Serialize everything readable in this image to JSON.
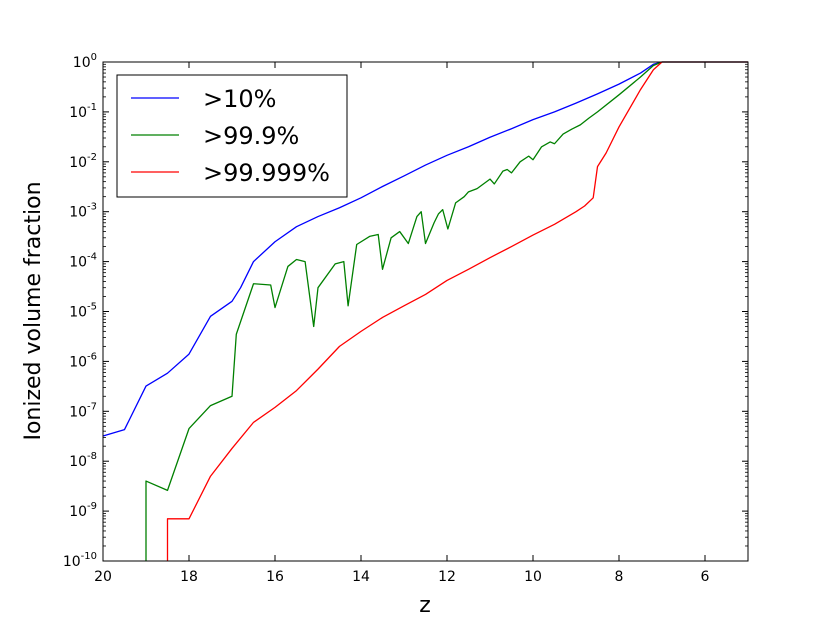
{
  "chart_data": {
    "type": "line",
    "xlabel": "z",
    "ylabel": "Ionized volume fraction",
    "xlim": [
      20,
      5
    ],
    "ylim": [
      1e-10,
      1
    ],
    "yscale": "log",
    "x_ticks": [
      20,
      18,
      16,
      14,
      12,
      10,
      8,
      6
    ],
    "x_tick_labels": [
      "20",
      "18",
      "16",
      "14",
      "12",
      "10",
      "8",
      "6"
    ],
    "y_ticks": [
      {
        "value": 1.0,
        "base": "10",
        "exp": "0"
      },
      {
        "value": 0.1,
        "base": "10",
        "exp": "-1"
      },
      {
        "value": 0.01,
        "base": "10",
        "exp": "-2"
      },
      {
        "value": 0.001,
        "base": "10",
        "exp": "-3"
      },
      {
        "value": 0.0001,
        "base": "10",
        "exp": "-4"
      },
      {
        "value": 1e-05,
        "base": "10",
        "exp": "-5"
      },
      {
        "value": 1e-06,
        "base": "10",
        "exp": "-6"
      },
      {
        "value": 1e-07,
        "base": "10",
        "exp": "-7"
      },
      {
        "value": 1e-08,
        "base": "10",
        "exp": "-8"
      },
      {
        "value": 1e-09,
        "base": "10",
        "exp": "-9"
      },
      {
        "value": 1e-10,
        "base": "10",
        "exp": "-10"
      }
    ],
    "grid": false,
    "legend": {
      "position": "top-left"
    },
    "series": [
      {
        "name": ">10%",
        "color": "#0000ff",
        "points": [
          [
            20.0,
            3.2e-08
          ],
          [
            19.5,
            4.3e-08
          ],
          [
            19.0,
            3.2e-07
          ],
          [
            18.5,
            5.8e-07
          ],
          [
            18.0,
            1.4e-06
          ],
          [
            17.5,
            8e-06
          ],
          [
            17.0,
            1.6e-05
          ],
          [
            16.8,
            3e-05
          ],
          [
            16.5,
            0.0001
          ],
          [
            16.0,
            0.00025
          ],
          [
            15.5,
            0.0005
          ],
          [
            15.0,
            0.0008
          ],
          [
            14.5,
            0.0012
          ],
          [
            14.0,
            0.0019
          ],
          [
            13.5,
            0.0032
          ],
          [
            13.0,
            0.0052
          ],
          [
            12.5,
            0.0086
          ],
          [
            12.0,
            0.0135
          ],
          [
            11.5,
            0.02
          ],
          [
            11.0,
            0.031
          ],
          [
            10.5,
            0.046
          ],
          [
            10.0,
            0.07
          ],
          [
            9.5,
            0.1
          ],
          [
            9.0,
            0.15
          ],
          [
            8.5,
            0.23
          ],
          [
            8.0,
            0.36
          ],
          [
            7.5,
            0.6
          ],
          [
            7.2,
            0.9
          ],
          [
            7.0,
            1.0
          ],
          [
            5.0,
            1.0
          ]
        ]
      },
      {
        "name": ">99.9%",
        "color": "#008000",
        "points": [
          [
            19.0,
            1e-10
          ],
          [
            19.0,
            4e-09
          ],
          [
            18.5,
            2.6e-09
          ],
          [
            18.0,
            4.5e-08
          ],
          [
            17.5,
            1.3e-07
          ],
          [
            17.0,
            2e-07
          ],
          [
            16.9,
            3.5e-06
          ],
          [
            16.5,
            3.6e-05
          ],
          [
            16.1,
            3.4e-05
          ],
          [
            16.0,
            1.2e-05
          ],
          [
            15.7,
            8e-05
          ],
          [
            15.5,
            0.00011
          ],
          [
            15.3,
            0.0001
          ],
          [
            15.1,
            5e-06
          ],
          [
            15.0,
            3e-05
          ],
          [
            14.6,
            9e-05
          ],
          [
            14.4,
            0.0001
          ],
          [
            14.3,
            1.3e-05
          ],
          [
            14.1,
            0.00022
          ],
          [
            13.8,
            0.00032
          ],
          [
            13.6,
            0.00035
          ],
          [
            13.5,
            7e-05
          ],
          [
            13.3,
            0.0003
          ],
          [
            13.1,
            0.0004
          ],
          [
            12.9,
            0.00023
          ],
          [
            12.7,
            0.0008
          ],
          [
            12.6,
            0.001
          ],
          [
            12.5,
            0.00023
          ],
          [
            12.3,
            0.0006
          ],
          [
            12.2,
            0.0009
          ],
          [
            12.1,
            0.0011
          ],
          [
            11.98,
            0.00045
          ],
          [
            11.8,
            0.0015
          ],
          [
            11.6,
            0.002
          ],
          [
            11.5,
            0.0025
          ],
          [
            11.3,
            0.0029
          ],
          [
            11.0,
            0.0045
          ],
          [
            10.9,
            0.0036
          ],
          [
            10.7,
            0.0065
          ],
          [
            10.6,
            0.007
          ],
          [
            10.5,
            0.006
          ],
          [
            10.3,
            0.01
          ],
          [
            10.1,
            0.013
          ],
          [
            10.0,
            0.011
          ],
          [
            9.8,
            0.02
          ],
          [
            9.6,
            0.025
          ],
          [
            9.5,
            0.023
          ],
          [
            9.3,
            0.036
          ],
          [
            9.1,
            0.045
          ],
          [
            8.9,
            0.055
          ],
          [
            8.7,
            0.075
          ],
          [
            8.5,
            0.1
          ],
          [
            8.0,
            0.22
          ],
          [
            7.5,
            0.5
          ],
          [
            7.2,
            0.85
          ],
          [
            7.0,
            1.0
          ],
          [
            5.0,
            1.0
          ]
        ]
      },
      {
        "name": ">99.999%",
        "color": "#ff0000",
        "points": [
          [
            18.5,
            1e-10
          ],
          [
            18.5,
            7e-10
          ],
          [
            18.0,
            7e-10
          ],
          [
            17.5,
            5e-09
          ],
          [
            17.0,
            1.8e-08
          ],
          [
            16.5,
            6e-08
          ],
          [
            16.0,
            1.2e-07
          ],
          [
            15.5,
            2.6e-07
          ],
          [
            15.0,
            7e-07
          ],
          [
            14.5,
            2e-06
          ],
          [
            14.0,
            4e-06
          ],
          [
            13.5,
            7.6e-06
          ],
          [
            13.0,
            1.3e-05
          ],
          [
            12.5,
            2.2e-05
          ],
          [
            12.0,
            4.2e-05
          ],
          [
            11.5,
            7e-05
          ],
          [
            11.0,
            0.00012
          ],
          [
            10.5,
            0.0002
          ],
          [
            10.0,
            0.00034
          ],
          [
            9.5,
            0.00056
          ],
          [
            9.0,
            0.001
          ],
          [
            8.8,
            0.0013
          ],
          [
            8.6,
            0.0019
          ],
          [
            8.5,
            0.008
          ],
          [
            8.3,
            0.015
          ],
          [
            8.0,
            0.05
          ],
          [
            7.5,
            0.28
          ],
          [
            7.2,
            0.7
          ],
          [
            7.0,
            1.0
          ],
          [
            5.0,
            1.0
          ]
        ]
      }
    ]
  }
}
